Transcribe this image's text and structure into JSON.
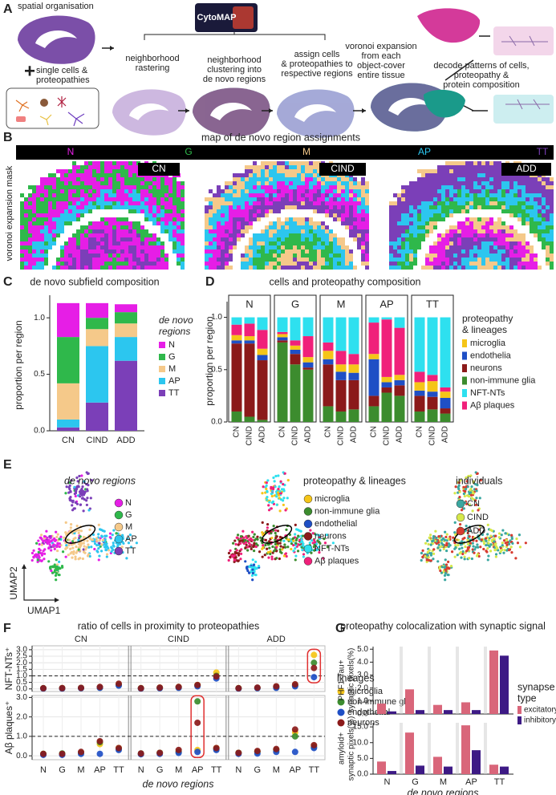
{
  "panel_labels": [
    "A",
    "B",
    "C",
    "D",
    "E",
    "F",
    "G"
  ],
  "panel_a": {
    "spatial": "spatial organisation",
    "plus": "+",
    "cells": [
      "single cells &",
      "proteopathies"
    ],
    "cytomap": "CytoMAP",
    "step1": [
      "neighborhood",
      "rastering"
    ],
    "step2": [
      "neighborhood",
      "clustering into",
      "de novo regions"
    ],
    "step3": [
      "assign cells",
      "& proteopathies to",
      "respective regions"
    ],
    "step4": [
      "voronoi expansion",
      "from each",
      "object-cover",
      "entire tissue"
    ],
    "decode": [
      "decode patterns of cells,",
      "proteopathy &",
      "protein composition"
    ]
  },
  "panel_b": {
    "title": "map of de novo region assignments",
    "regions": [
      "N",
      "G",
      "M",
      "AP",
      "TT"
    ],
    "region_colors": [
      "#e61ee6",
      "#2fb84b",
      "#f5c98a",
      "#2cc6ef",
      "#7b3fb8"
    ],
    "mask_label": "voronoi expansion mask",
    "maps": [
      "CN",
      "CIND",
      "ADD"
    ]
  },
  "panel_e": {
    "regions_title": "de novo regions",
    "regions": [
      "N",
      "G",
      "M",
      "AP",
      "TT"
    ],
    "region_colors": [
      "#e61ee6",
      "#2fb84b",
      "#f5c98a",
      "#2cc6ef",
      "#7b3fb8"
    ],
    "lineages_title": "proteopathy & lineages",
    "lineages": [
      "microglia",
      "non-immune glia",
      "endothelial",
      "neurons",
      "NFT-NTs",
      "Aβ plaques"
    ],
    "lineage_colors": [
      "#f5c518",
      "#3c8c2e",
      "#1f4fc5",
      "#8b1a1a",
      "#2ee0ef",
      "#f0207a"
    ],
    "individuals_title": "individuals",
    "individuals": [
      "CN",
      "CIND",
      "ADD"
    ],
    "individual_colors": [
      "#3aa7a0",
      "#d6e84a",
      "#d73b2f"
    ],
    "x_label": "UMAP1",
    "y_label": "UMAP2"
  },
  "chart_data": [
    {
      "type": "stacked_bar",
      "title": "de novo subfield composition",
      "y_label": "proportion per region",
      "legend_title": [
        "de novo",
        "regions"
      ],
      "categories": [
        "CN",
        "CIND",
        "ADD"
      ],
      "series": [
        {
          "name": "N",
          "color": "#e61ee6",
          "values": [
            0.3,
            0.13,
            0.07
          ]
        },
        {
          "name": "G",
          "color": "#2fb84b",
          "values": [
            0.41,
            0.1,
            0.1
          ]
        },
        {
          "name": "M",
          "color": "#f5c98a",
          "values": [
            0.32,
            0.15,
            0.12
          ]
        },
        {
          "name": "AP",
          "color": "#2cc6ef",
          "values": [
            0.07,
            0.5,
            0.21
          ]
        },
        {
          "name": "TT",
          "color": "#7b3fb8",
          "values": [
            0.03,
            0.25,
            0.62
          ]
        }
      ],
      "ylim": [
        0,
        1.2
      ],
      "yticks": [
        {
          "value": 0,
          "label": "0.0"
        },
        {
          "value": 0.5,
          "label": "0.5"
        },
        {
          "value": 1,
          "label": "1.0"
        }
      ]
    },
    {
      "type": "grouped_stacked_bar",
      "title": "cells and proteopathy composition",
      "y_label": "proportion  per region",
      "legend_title": [
        "proteopathy",
        "& lineages"
      ],
      "groups": [
        "N",
        "G",
        "M",
        "AP",
        "TT"
      ],
      "categories": [
        "CN",
        "CIND",
        "ADD",
        "CN",
        "CIND",
        "ADD",
        "CN",
        "CIND",
        "ADD",
        "CN",
        "CIND",
        "ADD",
        "CN",
        "CIND",
        "ADD"
      ],
      "series": [
        {
          "name": "microglia",
          "color": "#f5c518",
          "values": [
            0.05,
            0.04,
            0.06,
            0.03,
            0.04,
            0.05,
            0.08,
            0.07,
            0.08,
            0.05,
            0.05,
            0.05,
            0.08,
            0.1,
            0.06
          ]
        },
        {
          "name": "endothelia",
          "color": "#1f4fc5",
          "values": [
            0.03,
            0.03,
            0.05,
            0.03,
            0.04,
            0.05,
            0.05,
            0.08,
            0.07,
            0.35,
            0.05,
            0.05,
            0.05,
            0.05,
            0.1
          ]
        },
        {
          "name": "neurons",
          "color": "#8b1a1a",
          "values": [
            0.65,
            0.7,
            0.57,
            0.02,
            0.1,
            0.02,
            0.4,
            0.3,
            0.28,
            0.1,
            0.05,
            0.1,
            0.15,
            0.12,
            0.05
          ]
        },
        {
          "name": "non-immune glia",
          "color": "#3c8c2e",
          "values": [
            0.1,
            0.05,
            0.02,
            0.76,
            0.55,
            0.5,
            0.15,
            0.1,
            0.12,
            0.15,
            0.28,
            0.25,
            0.1,
            0.12,
            0.08
          ]
        },
        {
          "name": "NFT-NTs",
          "color": "#2ee0ef",
          "values": [
            0.07,
            0.06,
            0.12,
            0.14,
            0.22,
            0.18,
            0.24,
            0.32,
            0.35,
            0.05,
            0.02,
            0.1,
            0.52,
            0.55,
            0.67
          ]
        },
        {
          "name": "Aβ plaques",
          "color": "#f0207a",
          "values": [
            0.1,
            0.12,
            0.18,
            0.02,
            0.05,
            0.2,
            0.08,
            0.13,
            0.1,
            0.3,
            0.55,
            0.45,
            0.1,
            0.06,
            0.04
          ]
        }
      ],
      "ylim": [
        0,
        1.15
      ],
      "yticks": [
        {
          "value": 0,
          "label": "0.0"
        },
        {
          "value": 0.5,
          "label": "0.5"
        },
        {
          "value": 1,
          "label": "1.0"
        }
      ]
    },
    {
      "type": "scatter",
      "title": "ratio of cells in proximity to proteopathies",
      "y_label": "NFT-NTs⁺",
      "groups": [
        "CN",
        "CIND",
        "ADD"
      ],
      "categories": [
        "N",
        "G",
        "M",
        "AP",
        "TT",
        "N",
        "G",
        "M",
        "AP",
        "TT",
        "N",
        "G",
        "M",
        "AP",
        "TT"
      ],
      "series": [
        {
          "name": "microglia",
          "color": "#f5c518",
          "values": [
            0.05,
            0.06,
            0.08,
            0.12,
            0.35,
            0.06,
            0.1,
            0.15,
            0.3,
            1.25,
            0.06,
            0.08,
            0.15,
            0.3,
            2.6
          ]
        },
        {
          "name": "non-immune glia",
          "color": "#3c8c2e",
          "values": [
            0.05,
            0.05,
            0.07,
            0.1,
            0.3,
            0.05,
            0.08,
            0.12,
            0.25,
            1.0,
            0.05,
            0.07,
            0.12,
            0.25,
            2.0
          ]
        },
        {
          "name": "endothelial",
          "color": "#1f4fc5",
          "values": [
            0.03,
            0.03,
            0.05,
            0.08,
            0.25,
            0.03,
            0.05,
            0.08,
            0.2,
            0.8,
            0.03,
            0.05,
            0.08,
            0.2,
            0.9
          ]
        },
        {
          "name": "neurons",
          "color": "#8b1a1a",
          "values": [
            0.05,
            0.06,
            0.08,
            0.15,
            0.4,
            0.05,
            0.1,
            0.15,
            0.3,
            0.95,
            0.05,
            0.1,
            0.2,
            0.35,
            1.6
          ]
        }
      ],
      "hline": 1,
      "ylim": [
        -0.2,
        3.3
      ],
      "yticks": [
        {
          "value": 0,
          "label": "0.0"
        },
        {
          "value": 0.5,
          "label": "0.5"
        },
        {
          "value": 1,
          "label": "1.0"
        },
        {
          "value": 1.5,
          "label": "1.5"
        },
        {
          "value": 2,
          "label": "2.0"
        },
        {
          "value": 2.5,
          "label": "2.5"
        },
        {
          "value": 3,
          "label": "3.0"
        }
      ],
      "grid": true
    },
    {
      "type": "scatter",
      "y_label": "Aβ plaques⁺",
      "x_label": "de novo regions",
      "legend_title": "lineages",
      "groups": [
        "CN",
        "CIND",
        "ADD"
      ],
      "categories": [
        "N",
        "G",
        "M",
        "AP",
        "TT",
        "N",
        "G",
        "M",
        "AP",
        "TT",
        "N",
        "G",
        "M",
        "AP",
        "TT"
      ],
      "series": [
        {
          "name": "microglia",
          "color": "#f5c518",
          "values": [
            0.1,
            0.1,
            0.15,
            0.6,
            0.4,
            0.1,
            0.15,
            0.2,
            0.3,
            0.4,
            0.15,
            0.2,
            0.3,
            1.2,
            0.5
          ]
        },
        {
          "name": "non-immune glia",
          "color": "#3c8c2e",
          "values": [
            0.1,
            0.12,
            0.15,
            0.7,
            0.35,
            0.12,
            0.15,
            0.2,
            2.8,
            0.35,
            0.15,
            0.2,
            0.3,
            1.0,
            0.45
          ]
        },
        {
          "name": "endothelial",
          "color": "#1f4fc5",
          "values": [
            0.05,
            0.05,
            0.1,
            0.1,
            0.3,
            0.08,
            0.1,
            0.15,
            0.2,
            0.3,
            0.1,
            0.12,
            0.2,
            0.2,
            0.4
          ]
        },
        {
          "name": "neurons",
          "color": "#8b1a1a",
          "values": [
            0.1,
            0.1,
            0.2,
            0.75,
            0.4,
            0.12,
            0.15,
            0.3,
            1.7,
            0.4,
            0.15,
            0.25,
            0.35,
            1.35,
            0.55
          ]
        }
      ],
      "hline": 1,
      "ylim": [
        -0.2,
        3.1
      ],
      "yticks": [
        {
          "value": 0,
          "label": "0.0"
        },
        {
          "value": 1,
          "label": "1.0"
        },
        {
          "value": 2,
          "label": "2.0"
        },
        {
          "value": 3,
          "label": "3.0"
        }
      ],
      "grid": true
    },
    {
      "type": "grouped_bar",
      "title": "proteopathy colocalization with synaptic signal",
      "y_label": [
        "PHF1-Tau+",
        "synaptic pixels(%)"
      ],
      "legend_title": [
        "synapse",
        "type"
      ],
      "categories": [
        "N",
        "G",
        "M",
        "AP",
        "TT"
      ],
      "series": [
        {
          "name": "excitatory",
          "color": "#d9667a",
          "values": [
            0.8,
            1.9,
            0.7,
            0.9,
            4.9
          ]
        },
        {
          "name": "inhibitory",
          "color": "#3d1a85",
          "values": [
            0.2,
            0.3,
            0.3,
            0.3,
            4.5
          ]
        }
      ],
      "ylim": [
        0,
        5.2
      ],
      "yticks": [
        {
          "value": 0,
          "label": "0.0"
        },
        {
          "value": 1,
          "label": "1.0"
        },
        {
          "value": 2,
          "label": "2.0"
        },
        {
          "value": 3,
          "label": "3.0"
        },
        {
          "value": 4,
          "label": "4.0"
        },
        {
          "value": 5,
          "label": "5.0"
        }
      ]
    },
    {
      "type": "grouped_bar",
      "y_label": [
        "amyloid+",
        "synaptic pixels(%)"
      ],
      "x_label": "de novo regions",
      "categories": [
        "N",
        "G",
        "M",
        "AP",
        "TT"
      ],
      "series": [
        {
          "name": "excitatory",
          "color": "#d9667a",
          "values": [
            4.0,
            13.2,
            5.5,
            15.5,
            3.0
          ]
        },
        {
          "name": "inhibitory",
          "color": "#3d1a85",
          "values": [
            1.0,
            2.7,
            2.4,
            7.6,
            2.4
          ]
        }
      ],
      "ylim": [
        0,
        16.3
      ],
      "yticks": [
        {
          "value": 0,
          "label": "0.0"
        },
        {
          "value": 5,
          "label": "5.0"
        },
        {
          "value": 10,
          "label": "10.0"
        },
        {
          "value": 15,
          "label": "15.0"
        }
      ]
    }
  ]
}
